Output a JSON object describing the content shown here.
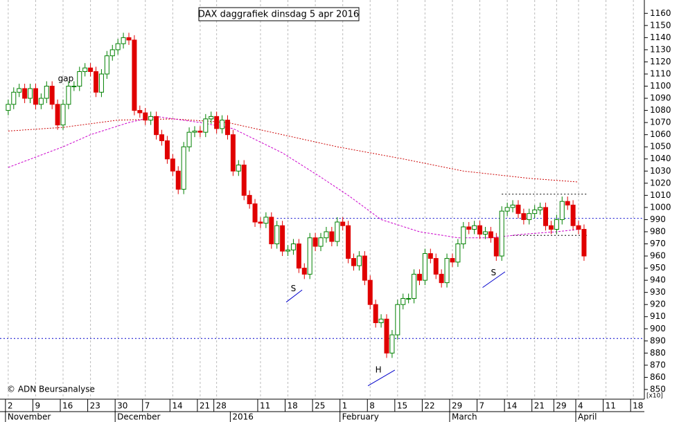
{
  "chart_data": {
    "type": "candlestick",
    "title": "DAX daggrafiek dinsdag 5 apr 2016",
    "credit": "© ADN Beursanalyse",
    "y_unit_label": "[x10]",
    "up_color": "#008000",
    "down_color": "#e00000",
    "grid": true,
    "xlim": [
      -1.5,
      116
    ],
    "ylim": [
      842,
      1171
    ],
    "yticks": [
      850,
      860,
      870,
      880,
      890,
      900,
      910,
      920,
      930,
      940,
      950,
      960,
      970,
      980,
      990,
      1000,
      1010,
      1020,
      1030,
      1040,
      1050,
      1060,
      1070,
      1080,
      1090,
      1100,
      1110,
      1120,
      1130,
      1140,
      1150,
      1160
    ],
    "xticks": [
      {
        "value": 0,
        "label": "2"
      },
      {
        "value": 5,
        "label": "9"
      },
      {
        "value": 10,
        "label": "16"
      },
      {
        "value": 15,
        "label": "23"
      },
      {
        "value": 20,
        "label": "30"
      },
      {
        "value": 25,
        "label": "7"
      },
      {
        "value": 30,
        "label": "14"
      },
      {
        "value": 35,
        "label": "21"
      },
      {
        "value": 38,
        "label": "28"
      },
      {
        "value": 46,
        "label": "11"
      },
      {
        "value": 51,
        "label": "18"
      },
      {
        "value": 56,
        "label": "25"
      },
      {
        "value": 61,
        "label": "1"
      },
      {
        "value": 66,
        "label": "8"
      },
      {
        "value": 71,
        "label": "15"
      },
      {
        "value": 76,
        "label": "22"
      },
      {
        "value": 81,
        "label": "29"
      },
      {
        "value": 86,
        "label": "7"
      },
      {
        "value": 91,
        "label": "14"
      },
      {
        "value": 96,
        "label": "21"
      },
      {
        "value": 100,
        "label": "29"
      },
      {
        "value": 104,
        "label": "4"
      },
      {
        "value": 109,
        "label": "11"
      },
      {
        "value": 114,
        "label": "18"
      }
    ],
    "months": [
      {
        "value": 0,
        "label": "November"
      },
      {
        "value": 20,
        "label": "December"
      },
      {
        "value": 41,
        "label": "2016"
      },
      {
        "value": 61,
        "label": "February"
      },
      {
        "value": 81,
        "label": "March"
      },
      {
        "value": 104,
        "label": "April"
      }
    ],
    "open": [
      1080,
      1085,
      1095,
      1098,
      1090,
      1098,
      1085,
      1090,
      1100,
      1085,
      1068,
      1085,
      1100,
      1100,
      1112,
      1115,
      1112,
      1095,
      1110,
      1125,
      1130,
      1135,
      1140,
      1138,
      1080,
      1078,
      1072,
      1075,
      1060,
      1055,
      1040,
      1030,
      1015,
      1050,
      1062,
      1063,
      1062,
      1073,
      1075,
      1065,
      1072,
      1060,
      1030,
      1035,
      1010,
      1003,
      988,
      987,
      992,
      970,
      985,
      964,
      965,
      970,
      950,
      945,
      975,
      968,
      975,
      980,
      972,
      988,
      985,
      958,
      952,
      960,
      940,
      920,
      905,
      908,
      880,
      895,
      920,
      925,
      925,
      945,
      940,
      962,
      958,
      945,
      938,
      958,
      955,
      970,
      984,
      982,
      985,
      978,
      980,
      975,
      960,
      997,
      1000,
      1002,
      995,
      990,
      995,
      998,
      1000,
      985,
      982,
      990,
      1005,
      1002,
      985,
      982
    ],
    "high": [
      1089,
      1099,
      1102,
      1102,
      1102,
      1102,
      1094,
      1104,
      1104,
      1089,
      1089,
      1104,
      1104,
      1116,
      1119,
      1119,
      1116,
      1114,
      1129,
      1134,
      1139,
      1144,
      1144,
      1142,
      1084,
      1082,
      1079,
      1079,
      1064,
      1059,
      1044,
      1034,
      1054,
      1066,
      1067,
      1067,
      1077,
      1079,
      1079,
      1076,
      1076,
      1064,
      1039,
      1039,
      1014,
      1007,
      992,
      996,
      996,
      989,
      989,
      969,
      974,
      974,
      954,
      979,
      979,
      979,
      984,
      984,
      992,
      992,
      989,
      962,
      964,
      964,
      944,
      924,
      912,
      912,
      899,
      924,
      929,
      929,
      949,
      949,
      966,
      966,
      962,
      949,
      962,
      962,
      974,
      988,
      988,
      989,
      989,
      984,
      984,
      979,
      1001,
      1004,
      1006,
      1006,
      999,
      999,
      1002,
      1004,
      1004,
      989,
      994,
      1009,
      1009,
      1006,
      989,
      986
    ],
    "low": [
      1076,
      1081,
      1091,
      1086,
      1086,
      1081,
      1081,
      1086,
      1081,
      1064,
      1064,
      1081,
      1096,
      1096,
      1108,
      1108,
      1091,
      1091,
      1106,
      1121,
      1126,
      1131,
      1134,
      1076,
      1074,
      1068,
      1068,
      1056,
      1051,
      1036,
      1026,
      1011,
      1011,
      1046,
      1058,
      1058,
      1058,
      1069,
      1061,
      1061,
      1056,
      1026,
      1026,
      1006,
      999,
      984,
      983,
      983,
      966,
      966,
      960,
      960,
      961,
      946,
      941,
      941,
      964,
      964,
      971,
      968,
      968,
      981,
      954,
      948,
      948,
      936,
      916,
      901,
      901,
      876,
      876,
      891,
      916,
      921,
      921,
      936,
      936,
      954,
      941,
      934,
      934,
      951,
      951,
      966,
      978,
      978,
      974,
      974,
      971,
      956,
      956,
      993,
      996,
      991,
      986,
      986,
      991,
      994,
      981,
      978,
      978,
      986,
      998,
      981,
      978,
      956
    ],
    "close": [
      1085,
      1095,
      1098,
      1090,
      1098,
      1085,
      1090,
      1100,
      1085,
      1068,
      1085,
      1100,
      1100,
      1112,
      1115,
      1112,
      1095,
      1110,
      1125,
      1130,
      1135,
      1140,
      1138,
      1080,
      1078,
      1072,
      1075,
      1060,
      1055,
      1040,
      1030,
      1015,
      1050,
      1062,
      1063,
      1062,
      1073,
      1075,
      1065,
      1072,
      1060,
      1030,
      1035,
      1010,
      1003,
      988,
      987,
      992,
      970,
      985,
      964,
      965,
      970,
      950,
      945,
      975,
      968,
      975,
      980,
      972,
      988,
      985,
      958,
      952,
      960,
      940,
      920,
      905,
      908,
      880,
      895,
      920,
      925,
      925,
      945,
      940,
      962,
      958,
      945,
      938,
      958,
      955,
      970,
      984,
      982,
      985,
      978,
      980,
      975,
      960,
      997,
      1000,
      1002,
      995,
      990,
      995,
      998,
      1000,
      985,
      982,
      990,
      1005,
      1002,
      985,
      982,
      960
    ],
    "series": [
      {
        "color": "#cc0000",
        "dash": "2,2",
        "x": [
          0,
          10,
          20,
          30,
          40,
          50,
          60,
          72,
          83,
          95,
          104
        ],
        "y": [
          1063,
          1066,
          1072,
          1073,
          1070,
          1060,
          1050,
          1040,
          1030,
          1024,
          1021
        ]
      },
      {
        "color": "#cc00cc",
        "dash": "3,2",
        "x": [
          0,
          10,
          15,
          22,
          27,
          35,
          41,
          50,
          57,
          62,
          68,
          75,
          82,
          88,
          94,
          100,
          104
        ],
        "y": [
          1033,
          1050,
          1060,
          1070,
          1075,
          1070,
          1065,
          1045,
          1025,
          1010,
          990,
          980,
          975,
          975,
          978,
          980,
          982
        ]
      }
    ],
    "reference_lines": [
      {
        "value": 991,
        "color": "#0000cc",
        "from": 49,
        "to": 116
      },
      {
        "value": 892,
        "color": "#0000cc",
        "from": -1.5,
        "to": 116
      },
      {
        "value": 1011,
        "color": "#000000",
        "from": 90,
        "to": 105.5
      },
      {
        "value": 977,
        "color": "#000000",
        "from": 92,
        "to": 105.5
      }
    ],
    "annotations": [
      {
        "text": "gap",
        "x": 10.5,
        "y": 1106,
        "color": "#aaaaaa"
      },
      {
        "text": "S",
        "x": 52,
        "y": 933,
        "color": "#0000cc",
        "line": [
          50.7,
          922,
          53.6,
          932
        ]
      },
      {
        "text": "H",
        "x": 67.5,
        "y": 866,
        "color": "#0000cc",
        "line": [
          65.6,
          853,
          70.5,
          866
        ]
      },
      {
        "text": "S",
        "x": 88.5,
        "y": 946,
        "color": "#0000cc",
        "line": [
          86.5,
          934,
          90.6,
          947
        ]
      }
    ]
  }
}
